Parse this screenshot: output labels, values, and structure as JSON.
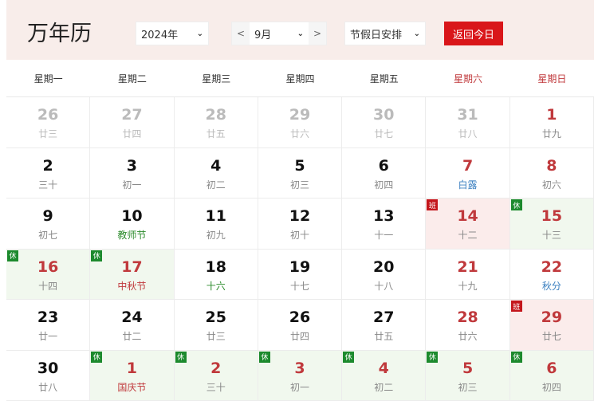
{
  "header": {
    "title": "万年历",
    "year": "2024年",
    "month": "9月",
    "prev": "<",
    "next": ">",
    "holiday_select": "节假日安排",
    "today_button": "返回今日",
    "accent": "#d9161a"
  },
  "weekdays": [
    "星期一",
    "星期二",
    "星期三",
    "星期四",
    "星期五",
    "星期六",
    "星期日"
  ],
  "colors": {
    "rest_badge": "#1c8a2d",
    "work_badge": "#c4161c",
    "festival_green": "#2a8a2a",
    "festival_blue": "#3a7fc0",
    "festival_red": "#c0393c"
  },
  "days": [
    {
      "n": "26",
      "l": "廿三",
      "t": "faded"
    },
    {
      "n": "27",
      "l": "廿四",
      "t": "faded"
    },
    {
      "n": "28",
      "l": "廿五",
      "t": "faded"
    },
    {
      "n": "29",
      "l": "廿六",
      "t": "faded"
    },
    {
      "n": "30",
      "l": "廿七",
      "t": "faded"
    },
    {
      "n": "31",
      "l": "廿八",
      "t": "faded"
    },
    {
      "n": "1",
      "l": "廿九",
      "t": "red"
    },
    {
      "n": "2",
      "l": "三十"
    },
    {
      "n": "3",
      "l": "初一"
    },
    {
      "n": "4",
      "l": "初二"
    },
    {
      "n": "5",
      "l": "初三"
    },
    {
      "n": "6",
      "l": "初四"
    },
    {
      "n": "7",
      "l": "白露",
      "t": "red",
      "lc": "blue"
    },
    {
      "n": "8",
      "l": "初六",
      "t": "red"
    },
    {
      "n": "9",
      "l": "初七"
    },
    {
      "n": "10",
      "l": "教师节",
      "lc": "green"
    },
    {
      "n": "11",
      "l": "初九"
    },
    {
      "n": "12",
      "l": "初十"
    },
    {
      "n": "13",
      "l": "十一"
    },
    {
      "n": "14",
      "l": "十二",
      "t": "red",
      "b": "work",
      "bt": "班"
    },
    {
      "n": "15",
      "l": "十三",
      "t": "red",
      "b": "rest",
      "bt": "休"
    },
    {
      "n": "16",
      "l": "十四",
      "t": "red",
      "b": "rest",
      "bt": "休"
    },
    {
      "n": "17",
      "l": "中秋节",
      "t": "red",
      "lc": "red",
      "b": "rest",
      "bt": "休"
    },
    {
      "n": "18",
      "l": "十六",
      "lc": "green"
    },
    {
      "n": "19",
      "l": "十七"
    },
    {
      "n": "20",
      "l": "十八"
    },
    {
      "n": "21",
      "l": "十九",
      "t": "red"
    },
    {
      "n": "22",
      "l": "秋分",
      "t": "red",
      "lc": "blue"
    },
    {
      "n": "23",
      "l": "廿一"
    },
    {
      "n": "24",
      "l": "廿二"
    },
    {
      "n": "25",
      "l": "廿三"
    },
    {
      "n": "26",
      "l": "廿四"
    },
    {
      "n": "27",
      "l": "廿五"
    },
    {
      "n": "28",
      "l": "廿六",
      "t": "red"
    },
    {
      "n": "29",
      "l": "廿七",
      "t": "red",
      "b": "work",
      "bt": "班"
    },
    {
      "n": "30",
      "l": "廿八"
    },
    {
      "n": "1",
      "l": "国庆节",
      "t": "red",
      "lc": "red",
      "b": "rest",
      "bt": "休"
    },
    {
      "n": "2",
      "l": "三十",
      "t": "red",
      "b": "rest",
      "bt": "休"
    },
    {
      "n": "3",
      "l": "初一",
      "t": "red",
      "b": "rest",
      "bt": "休"
    },
    {
      "n": "4",
      "l": "初二",
      "t": "red",
      "b": "rest",
      "bt": "休"
    },
    {
      "n": "5",
      "l": "初三",
      "t": "red",
      "b": "rest",
      "bt": "休"
    },
    {
      "n": "6",
      "l": "初四",
      "t": "red",
      "b": "rest",
      "bt": "休"
    }
  ]
}
